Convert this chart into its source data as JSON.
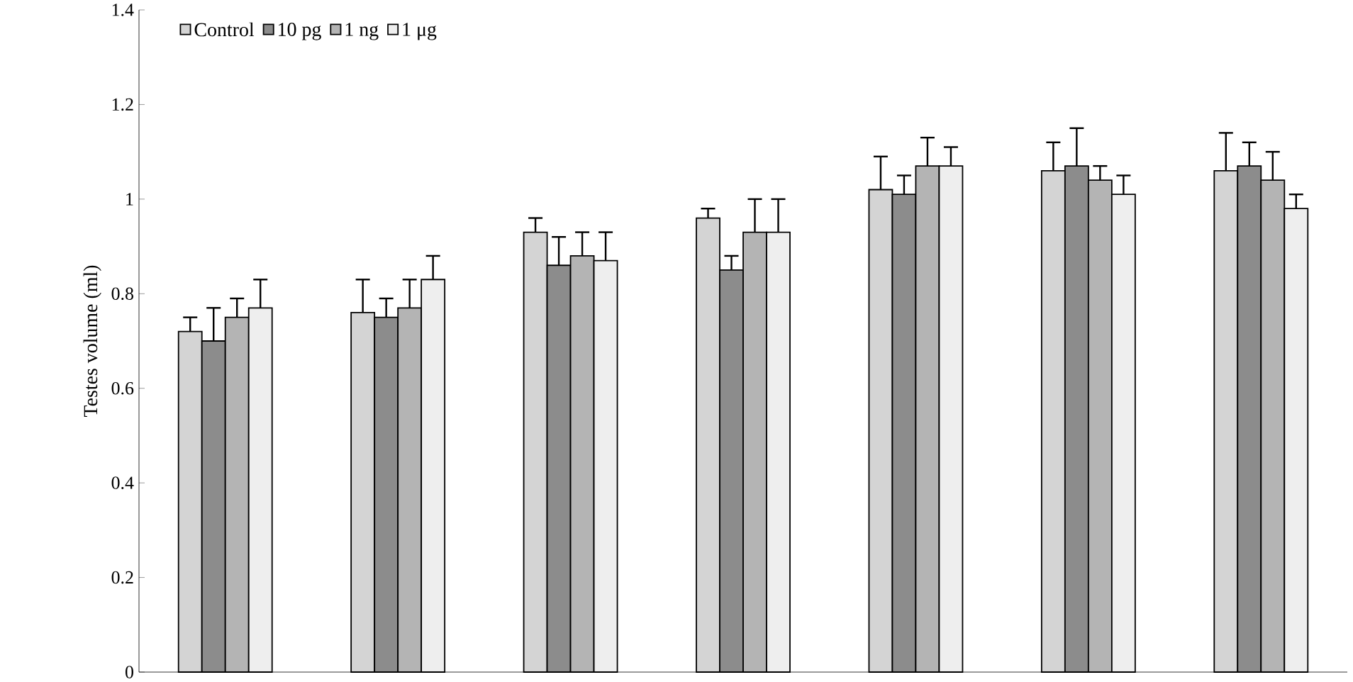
{
  "chart_data": {
    "type": "bar",
    "ylabel": "Testes volume (ml)",
    "categories": [
      null,
      null,
      null,
      null,
      null,
      null,
      null
    ],
    "series": [
      {
        "name": "Control",
        "color": "#d4d4d4",
        "values": [
          0.72,
          0.76,
          0.93,
          0.96,
          1.02,
          1.06,
          1.06
        ],
        "errors": [
          0.03,
          0.07,
          0.03,
          0.02,
          0.07,
          0.06,
          0.08
        ]
      },
      {
        "name": "10 pg",
        "color": "#8c8c8c",
        "values": [
          0.7,
          0.75,
          0.86,
          0.85,
          1.01,
          1.07,
          1.07
        ],
        "errors": [
          0.07,
          0.04,
          0.06,
          0.03,
          0.04,
          0.08,
          0.05
        ]
      },
      {
        "name": "1 ng",
        "color": "#b4b4b4",
        "values": [
          0.75,
          0.77,
          0.88,
          0.93,
          1.07,
          1.04,
          1.04
        ],
        "errors": [
          0.04,
          0.06,
          0.05,
          0.07,
          0.06,
          0.03,
          0.06
        ]
      },
      {
        "name": "1 μg",
        "color": "#eeeeee",
        "values": [
          0.77,
          0.83,
          0.87,
          0.93,
          1.07,
          1.01,
          0.98
        ],
        "errors": [
          0.06,
          0.05,
          0.06,
          0.07,
          0.04,
          0.04,
          0.03
        ]
      }
    ],
    "ylim": [
      0,
      1.4
    ],
    "yticks": [
      0,
      0.2,
      0.4,
      0.6,
      0.8,
      1,
      1.2,
      1.4
    ],
    "legend": "top left"
  }
}
